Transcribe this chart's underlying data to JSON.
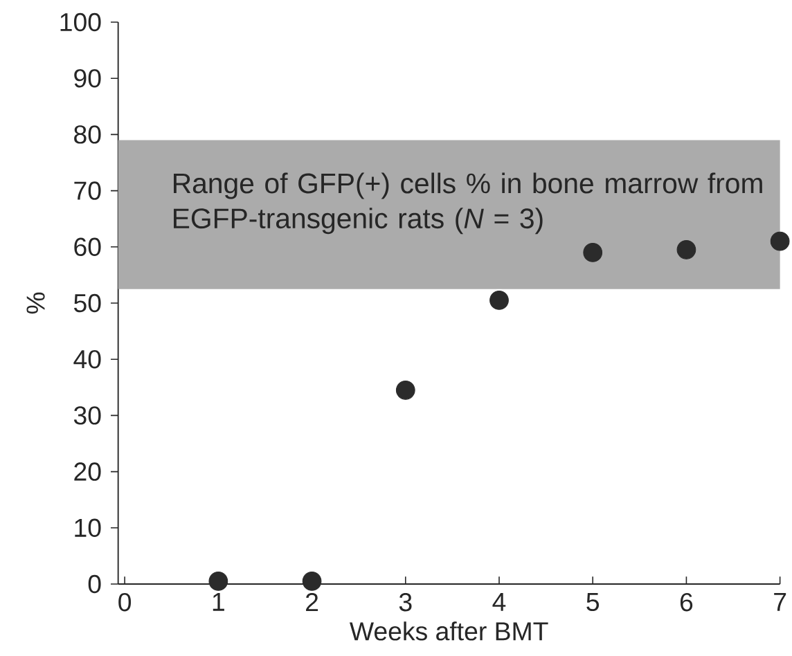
{
  "chart_data": {
    "type": "scatter",
    "xlabel": "Weeks after BMT",
    "ylabel": "%",
    "x": [
      1,
      2,
      3,
      4,
      5,
      6,
      7
    ],
    "values": [
      0.5,
      0.5,
      34.5,
      50.5,
      59,
      59.5,
      61
    ],
    "color": "#2b2b2b",
    "marker": "circle",
    "xlim": [
      -0.07,
      7
    ],
    "xticks": [
      0,
      1,
      2,
      3,
      4,
      5,
      6,
      7
    ],
    "ylim": [
      0,
      100
    ],
    "yticks": [
      0,
      10,
      20,
      30,
      40,
      50,
      60,
      70,
      80,
      90,
      100
    ],
    "bands": [
      {
        "axis": "y",
        "from": 52.5,
        "to": 79,
        "color": "#ababab",
        "label": "Range of GFP(+) cells % in bone marrow from EGFP-transgenic rats (*N* = 3)"
      }
    ]
  }
}
